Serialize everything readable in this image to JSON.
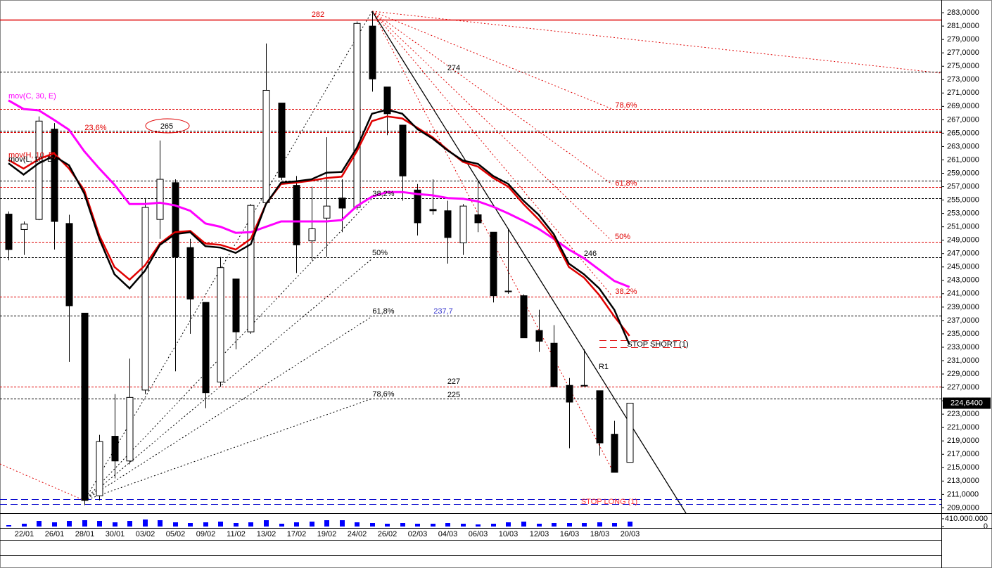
{
  "chart_data": {
    "type": "candlestick",
    "categories": [
      null,
      "22/01",
      null,
      "26/01",
      null,
      "28/01",
      null,
      "30/01",
      null,
      "03/02",
      null,
      "05/02",
      null,
      "09/02",
      null,
      "11/02",
      null,
      "13/02",
      null,
      "17/02",
      null,
      "19/02",
      null,
      "24/02",
      null,
      "26/02",
      null,
      "02/03",
      null,
      "04/03",
      null,
      "06/03",
      null,
      "10/03",
      null,
      "12/03",
      null,
      "16/03",
      null,
      "18/03",
      null,
      "20/03"
    ],
    "open": [
      252.9,
      250.6,
      252.1,
      265.6,
      251.5,
      238.1,
      210.8,
      219.7,
      216.0,
      226.6,
      252.1,
      257.6,
      247.9,
      239.7,
      227.8,
      243.2,
      235.3,
      254.6,
      269.5,
      257.2,
      248.9,
      252.3,
      255.3,
      253.9,
      281.0,
      271.9,
      266.2,
      256.5,
      253.6,
      253.4,
      248.6,
      252.8,
      250.2,
      241.4,
      240.7,
      235.5,
      233.6,
      227.3,
      227.3,
      226.5,
      220.0,
      215.8
    ],
    "high": [
      253.3,
      251.8,
      267.5,
      266.5,
      252.8,
      238.1,
      219.9,
      226.0,
      231.3,
      255.3,
      263.9,
      258.1,
      249.2,
      239.7,
      246.5,
      243.2,
      254.4,
      278.4,
      269.5,
      258.6,
      257.0,
      264.4,
      258.1,
      281.7,
      283.2,
      271.9,
      266.2,
      257.4,
      258.1,
      254.9,
      254.4,
      257.8,
      250.2,
      250.7,
      240.9,
      238.6,
      236.3,
      228.4,
      232.7,
      226.5,
      222.0,
      224.64
    ],
    "low": [
      246.0,
      246.8,
      252.0,
      247.6,
      230.8,
      209.4,
      210.1,
      213.4,
      215.5,
      226.0,
      249.2,
      229.4,
      235.0,
      223.9,
      227.1,
      232.7,
      235.0,
      254.4,
      258.0,
      244.1,
      246.0,
      246.5,
      250.2,
      253.5,
      271.2,
      264.7,
      254.9,
      249.7,
      252.8,
      245.5,
      246.8,
      250.2,
      239.7,
      241.0,
      234.4,
      232.3,
      227.1,
      217.9,
      227.2,
      216.8,
      214.3,
      215.8
    ],
    "close": [
      247.6,
      251.4,
      266.8,
      251.8,
      239.2,
      210.1,
      218.9,
      216.0,
      225.5,
      253.9,
      258.1,
      246.5,
      240.2,
      226.2,
      244.9,
      235.3,
      254.2,
      271.4,
      258.4,
      248.3,
      250.7,
      254.1,
      253.8,
      281.4,
      273.1,
      267.9,
      258.6,
      251.6,
      253.4,
      249.4,
      254.1,
      251.6,
      240.7,
      241.3,
      234.4,
      233.9,
      227.1,
      224.8,
      227.2,
      218.7,
      214.3,
      224.64
    ],
    "volume": [
      74000000,
      148000000,
      296000000,
      222000000,
      296000000,
      333000000,
      296000000,
      222000000,
      296000000,
      370000000,
      333000000,
      222000000,
      185000000,
      222000000,
      259000000,
      185000000,
      222000000,
      333000000,
      148000000,
      222000000,
      259000000,
      333000000,
      333000000,
      222000000,
      185000000,
      148000000,
      185000000,
      148000000,
      148000000,
      185000000,
      148000000,
      111000000,
      148000000,
      222000000,
      259000000,
      148000000,
      185000000,
      185000000,
      185000000,
      222000000,
      185000000,
      259000000
    ],
    "volume_color": "#0000ff",
    "series": [
      {
        "name": "mov(C, 30, E)",
        "color": "#ff00ff",
        "values": [
          269.9,
          268.6,
          268.4,
          267.0,
          265.5,
          262.3,
          259.7,
          257.3,
          254.4,
          254.4,
          254.6,
          254.2,
          253.4,
          251.5,
          251.0,
          250.1,
          250.2,
          251.0,
          251.8,
          251.8,
          251.8,
          251.8,
          252.0,
          254.1,
          255.5,
          256.2,
          256.2,
          255.9,
          255.7,
          255.3,
          255.2,
          254.8,
          254.0,
          253.0,
          251.9,
          250.7,
          249.2,
          247.6,
          246.3,
          244.6,
          242.9,
          242.0
        ]
      },
      {
        "name": "mov(H, 10, E)",
        "color": "#e00000",
        "values": [
          261.0,
          259.7,
          261.1,
          262.0,
          259.7,
          256.5,
          249.7,
          245.0,
          243.1,
          245.2,
          248.5,
          250.2,
          250.4,
          248.5,
          248.3,
          247.6,
          249.2,
          254.4,
          257.4,
          257.6,
          257.9,
          258.3,
          258.5,
          262.3,
          266.8,
          267.5,
          267.2,
          265.8,
          264.4,
          262.5,
          260.7,
          260.0,
          258.3,
          257.0,
          254.4,
          252.1,
          249.4,
          245.0,
          243.4,
          240.8,
          237.6,
          234.7
        ]
      },
      {
        "name": "mov(L, 10, E)",
        "color": "#000000",
        "values": [
          260.5,
          258.8,
          260.5,
          261.6,
          260.2,
          256.0,
          249.2,
          243.9,
          241.8,
          244.4,
          248.3,
          249.9,
          250.2,
          248.1,
          247.9,
          247.1,
          248.4,
          254.4,
          257.6,
          257.8,
          258.1,
          259.1,
          259.2,
          262.8,
          267.9,
          268.5,
          267.9,
          265.6,
          264.2,
          262.4,
          260.9,
          260.4,
          258.6,
          257.4,
          254.9,
          252.8,
          249.9,
          245.5,
          243.9,
          241.8,
          238.6,
          233.4
        ]
      }
    ],
    "ylim": [
      208.2,
      284.9
    ],
    "yticks": [
      {
        "value": 283,
        "label": "283,0000"
      },
      {
        "value": 281,
        "label": "281,0000"
      },
      {
        "value": 279,
        "label": "279,0000"
      },
      {
        "value": 277,
        "label": "277,0000"
      },
      {
        "value": 275,
        "label": "275,0000"
      },
      {
        "value": 273,
        "label": "273,0000"
      },
      {
        "value": 271,
        "label": "271,0000"
      },
      {
        "value": 269,
        "label": "269,0000"
      },
      {
        "value": 267,
        "label": "267,0000"
      },
      {
        "value": 265,
        "label": "265,0000"
      },
      {
        "value": 263,
        "label": "263,0000"
      },
      {
        "value": 261,
        "label": "261,0000"
      },
      {
        "value": 259,
        "label": "259,0000"
      },
      {
        "value": 257,
        "label": "257,0000"
      },
      {
        "value": 255,
        "label": "255,0000"
      },
      {
        "value": 253,
        "label": "253,0000"
      },
      {
        "value": 251,
        "label": "251,0000"
      },
      {
        "value": 249,
        "label": "249,0000"
      },
      {
        "value": 247,
        "label": "247,0000"
      },
      {
        "value": 245,
        "label": "245,0000"
      },
      {
        "value": 243,
        "label": "243,0000"
      },
      {
        "value": 241,
        "label": "241,0000"
      },
      {
        "value": 239,
        "label": "239,0000"
      },
      {
        "value": 237,
        "label": "237,0000"
      },
      {
        "value": 235,
        "label": "235,0000"
      },
      {
        "value": 233,
        "label": "233,0000"
      },
      {
        "value": 231,
        "label": "231,0000"
      },
      {
        "value": 229,
        "label": "229,0000"
      },
      {
        "value": 227,
        "label": "227,0000"
      },
      {
        "value": 225,
        "label": "225,0000"
      },
      {
        "value": 223,
        "label": "223,0000"
      },
      {
        "value": 221,
        "label": "221,0000"
      },
      {
        "value": 219,
        "label": "219,0000"
      },
      {
        "value": 217,
        "label": "217,0000"
      },
      {
        "value": 215,
        "label": "215,0000"
      },
      {
        "value": 213,
        "label": "213,0000"
      },
      {
        "value": 211,
        "label": "211,0000"
      },
      {
        "value": 209,
        "label": "209,0000"
      }
    ],
    "volume_ylim": [
      0,
      630000000
    ],
    "volume_yticks": [
      {
        "value": 410000000,
        "label": "410.000.000"
      },
      0
    ],
    "current_price": {
      "value": 224.64,
      "label": "224,6400"
    },
    "levels": [
      {
        "value": 282,
        "color": "#e00000",
        "style": "solid"
      },
      {
        "value": 274.2,
        "color": "#000000",
        "style": "dotted"
      },
      {
        "value": 268.6,
        "color": "#e00000",
        "style": "dotted"
      },
      {
        "value": 265.4,
        "color": "#000000",
        "style": "dotted"
      },
      {
        "value": 265.1,
        "color": "#e00000",
        "style": "dotted"
      },
      {
        "value": 257.9,
        "color": "#000000",
        "style": "dotted"
      },
      {
        "value": 256.9,
        "color": "#e00000",
        "style": "dotted"
      },
      {
        "value": 255.3,
        "color": "#000000",
        "style": "dotted"
      },
      {
        "value": 248.8,
        "color": "#e00000",
        "style": "dotted"
      },
      {
        "value": 246.4,
        "color": "#000000",
        "style": "dotted"
      },
      {
        "value": 240.6,
        "color": "#e00000",
        "style": "dotted"
      },
      {
        "value": 237.7,
        "color": "#000000",
        "style": "dotted"
      },
      {
        "value": 234.0,
        "color": "#e00000",
        "style": "dashed"
      },
      {
        "value": 233.0,
        "color": "#e00000",
        "style": "dashed"
      },
      {
        "value": 227.1,
        "color": "#e00000",
        "style": "dotted"
      },
      {
        "value": 225.3,
        "color": "#000000",
        "style": "dotted"
      },
      {
        "value": 210.3,
        "color": "#0000cc",
        "style": "dashed"
      },
      {
        "value": 209.6,
        "color": "#0000cc",
        "style": "dashed"
      }
    ],
    "annotations": [
      "282",
      "274",
      "78,6%",
      "23,6%",
      "265",
      "61,8%",
      "38,2%",
      "50%",
      "246",
      "50%",
      "38,2%",
      "61,8%",
      "237,7",
      "STOP SHORT (1)",
      "R1",
      "227",
      "78,6%",
      "225",
      "STOP LONG (1)"
    ]
  }
}
